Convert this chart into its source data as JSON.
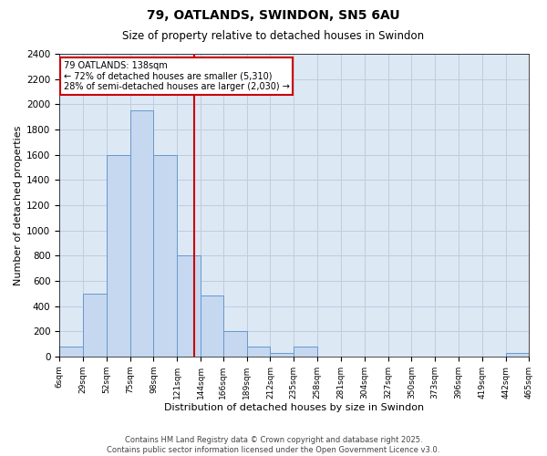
{
  "title1": "79, OATLANDS, SWINDON, SN5 6AU",
  "title2": "Size of property relative to detached houses in Swindon",
  "xlabel": "Distribution of detached houses by size in Swindon",
  "ylabel": "Number of detached properties",
  "footer": "Contains HM Land Registry data © Crown copyright and database right 2025.\nContains public sector information licensed under the Open Government Licence v3.0.",
  "annotation_title": "79 OATLANDS: 138sqm",
  "annotation_line1": "← 72% of detached houses are smaller (5,310)",
  "annotation_line2": "28% of semi-detached houses are larger (2,030) →",
  "property_size": 138,
  "bin_edges": [
    6,
    29,
    52,
    75,
    98,
    121,
    144,
    166,
    189,
    212,
    235,
    258,
    281,
    304,
    327,
    350,
    373,
    396,
    419,
    442,
    465
  ],
  "bar_heights": [
    75,
    500,
    1600,
    1950,
    1600,
    800,
    480,
    200,
    75,
    25,
    75,
    0,
    0,
    0,
    0,
    0,
    0,
    0,
    0,
    30
  ],
  "bar_color": "#c5d8f0",
  "bar_edge_color": "#6699cc",
  "vline_color": "#cc0000",
  "annotation_box_color": "#cc0000",
  "grid_color": "#c0cde0",
  "bg_color": "#dde8f5",
  "ylim_max": 2400,
  "yticks": [
    0,
    200,
    400,
    600,
    800,
    1000,
    1200,
    1400,
    1600,
    1800,
    2000,
    2200,
    2400
  ]
}
